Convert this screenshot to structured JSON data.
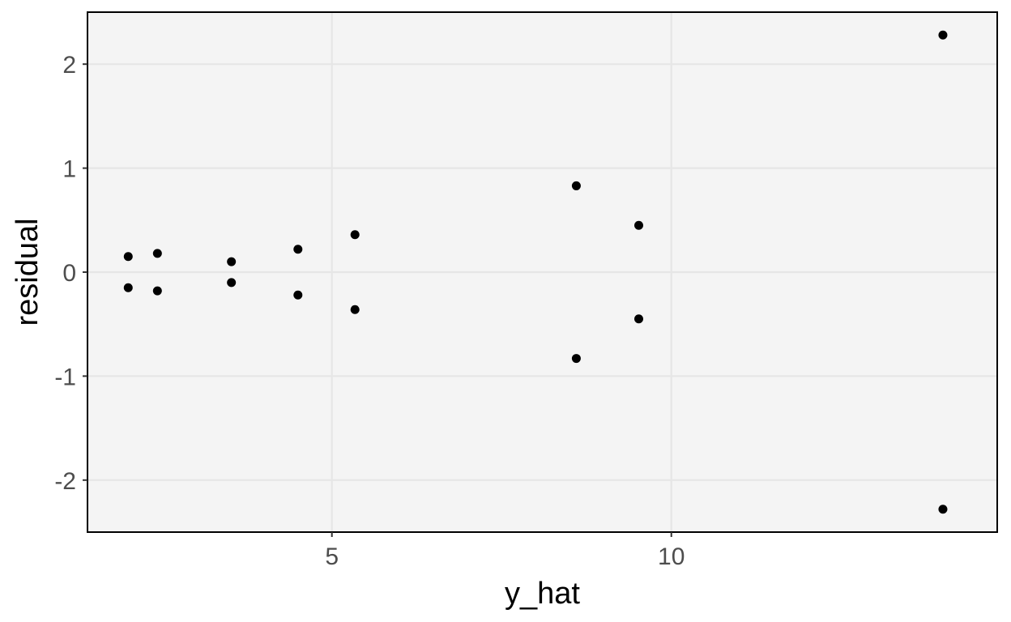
{
  "chart_data": {
    "type": "scatter",
    "title": "",
    "xlabel": "y_hat",
    "ylabel": "residual",
    "xlim": [
      1.4,
      14.8
    ],
    "ylim": [
      -2.5,
      2.5
    ],
    "x_ticks": [
      5,
      10
    ],
    "x_tick_labels": [
      "5",
      "10"
    ],
    "y_ticks": [
      -2,
      -1,
      0,
      1,
      2
    ],
    "y_tick_labels": [
      "-2",
      "-1",
      "0",
      "1",
      "2"
    ],
    "grid": true,
    "legend": "none",
    "colors": {
      "panel_background": "#f4f4f4",
      "grid": "#e6e6e6",
      "points": "#000000",
      "border": "#000000"
    },
    "series": [
      {
        "points": [
          {
            "x": 2.0,
            "y": 0.15
          },
          {
            "x": 2.0,
            "y": -0.15
          },
          {
            "x": 2.43,
            "y": 0.18
          },
          {
            "x": 2.43,
            "y": -0.18
          },
          {
            "x": 3.52,
            "y": 0.1
          },
          {
            "x": 3.52,
            "y": -0.1
          },
          {
            "x": 4.5,
            "y": 0.22
          },
          {
            "x": 4.5,
            "y": -0.22
          },
          {
            "x": 5.34,
            "y": 0.36
          },
          {
            "x": 5.34,
            "y": -0.36
          },
          {
            "x": 8.6,
            "y": 0.83
          },
          {
            "x": 8.6,
            "y": -0.83
          },
          {
            "x": 9.52,
            "y": 0.45
          },
          {
            "x": 9.52,
            "y": -0.45
          },
          {
            "x": 14.0,
            "y": 2.28
          },
          {
            "x": 14.0,
            "y": -2.28
          }
        ]
      }
    ]
  }
}
